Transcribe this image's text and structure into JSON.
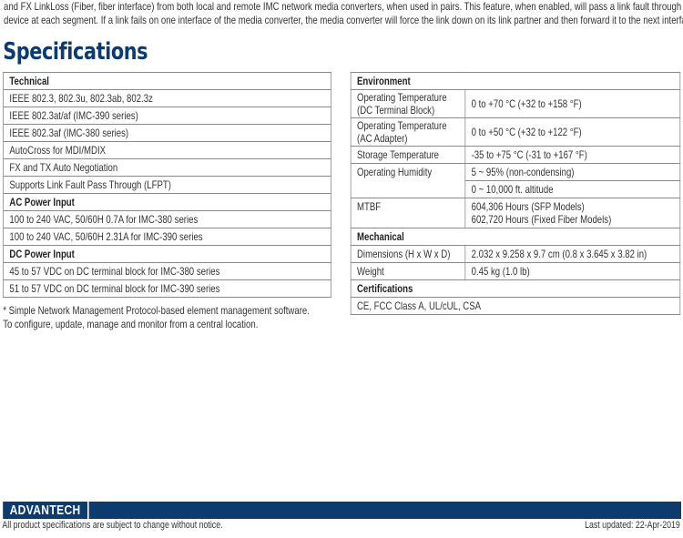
{
  "intro": [
    "and FX LinkLoss (Fiber, fiber interface) from both local and remote IMC network media converters, when used in pairs.  This feature, when enabled, will pass a link fault through the",
    "device at each segment.  If a link fails on one interface of the media converter, the media converter will force the link down on its link partner and then forward it to the next interface."
  ],
  "title": "Specifications",
  "left": [
    {
      "h": "Technical"
    },
    "IEEE 802.3, 802.3u, 802.3ab, 802.3z",
    "IEEE 802.3at/af (IMC-390 series)",
    "IEEE 802.3af (IMC-380 series)",
    "AutoCross for MDI/MDIX",
    "FX and TX Auto Negotiation",
    "Supports Link Fault Pass Through (LFPT)",
    {
      "h": "AC Power Input"
    },
    "100 to 240 VAC, 50/60H 0.7A for IMC-380 series",
    "100 to 240 VAC, 50/60H 2.31A for IMC-390 series",
    {
      "h": "DC Power Input"
    },
    "45 to 57 VDC on DC terminal block for IMC-380 series",
    "51 to 57 VDC on DC terminal block for IMC-390 series"
  ],
  "right": {
    "environment": "Environment",
    "op_dc": [
      "Operating Temperature",
      "(DC Terminal Block)",
      "0 to +70 °C (+32 to +158 °F)"
    ],
    "op_ac": [
      "Operating Temperature",
      "(AC Adapter)",
      "0 to +50 °C (+32 to +122 °F)"
    ],
    "storage": [
      "Storage Temperature",
      "-35 to +75 °C (-31 to +167 °F)"
    ],
    "humidity": [
      "Operating Humidity",
      "5 ~ 95% (non-condensing)",
      "0 ~ 10,000 ft. altitude"
    ],
    "mtbf": [
      "MTBF",
      "604,306 Hours (SFP Models)",
      "602,720 Hours (Fixed Fiber Models)"
    ],
    "mechanical": "Mechanical",
    "dimensions": [
      "Dimensions (H x W x D)",
      "2.032 x 9.258 x 9.7 cm (0.8 x 3.645 x 3.82 in)"
    ],
    "weight": [
      "Weight",
      "0.45 kg (1.0 lb)"
    ],
    "certifications": "Certifications",
    "cert_value": "CE, FCC Class A, UL/cUL, CSA"
  },
  "note": [
    "* Simple Network Management Protocol-based element management software.",
    "To configure, update, manage and monitor from a central location."
  ],
  "footer": {
    "logo": "ADVANTECH",
    "disclaimer": "All product specifications are subject to change without notice.",
    "updated": "Last updated: 22-Apr-2019"
  }
}
